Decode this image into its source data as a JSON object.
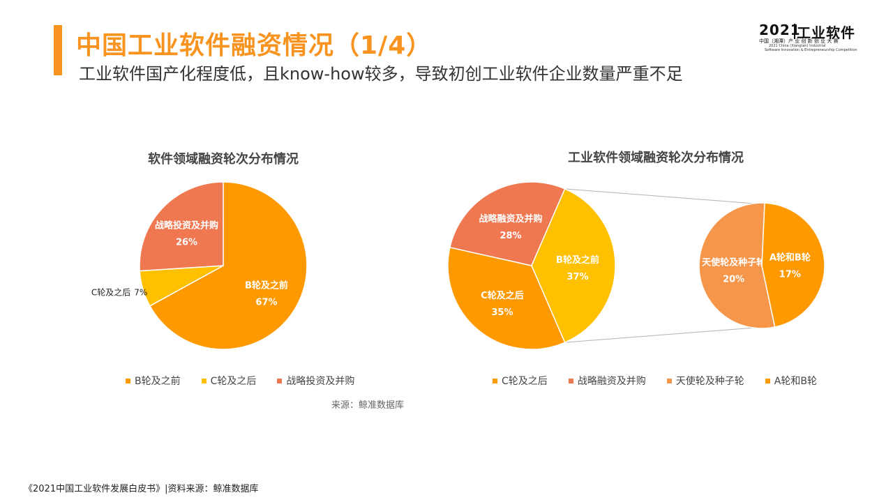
{
  "header": {
    "title": "中国工业软件融资情况（1/4）",
    "subtitle": "工业软件国产化程度低，且know-how较多，导致初创工业软件企业数量严重不足"
  },
  "logo": {
    "year": "2021",
    "name": "工业软件",
    "line1": "中国（湘潭）产 业 创 新 创 业 大 赛",
    "line2": "2021 China (Xiangtan) Industrial",
    "line3": "Software Innovation & Entrepreneurship Competition"
  },
  "colors": {
    "orange": "#ff9900",
    "yellow": "#ffc000",
    "coral": "#f07850",
    "light_orange": "#f5964b",
    "accent": "#f7931e"
  },
  "chart_data": [
    {
      "type": "pie",
      "title": "软件领域融资轮次分布情况",
      "labels": [
        "B轮及之前",
        "C轮及之后",
        "战略投资及并购"
      ],
      "values": [
        67,
        7,
        26
      ],
      "value_labels": [
        "67%",
        "7%",
        "26%"
      ],
      "colors": [
        "#ff9900",
        "#ffc000",
        "#f07850"
      ],
      "legend_position": "bottom"
    },
    {
      "type": "pie",
      "subtype": "pie-of-pie",
      "title": "工业软件领域融资轮次分布情况",
      "labels": [
        "C轮及之后",
        "战略融资及并购",
        "B轮及之前"
      ],
      "values": [
        35,
        28,
        37
      ],
      "value_labels": [
        "35%",
        "28%",
        "37%"
      ],
      "colors": [
        "#ff9900",
        "#f07850",
        "#ffc000"
      ],
      "breakdown_of": "B轮及之前",
      "secondary": {
        "labels": [
          "天使轮及种子轮",
          "A轮和B轮"
        ],
        "values": [
          20,
          17
        ],
        "value_labels": [
          "20%",
          "17%"
        ],
        "colors": [
          "#f5964b",
          "#ff9900"
        ]
      },
      "legend": [
        "C轮及之后",
        "战略融资及并购",
        "天使轮及种子轮",
        "A轮和B轮"
      ],
      "legend_colors": [
        "#ff9900",
        "#f07850",
        "#f5964b",
        "#ff9900"
      ],
      "legend_position": "bottom"
    }
  ],
  "source": "来源：鲸准数据库",
  "footer": "《2021中国工业软件发展白皮书》|资料来源：鲸准数据库"
}
